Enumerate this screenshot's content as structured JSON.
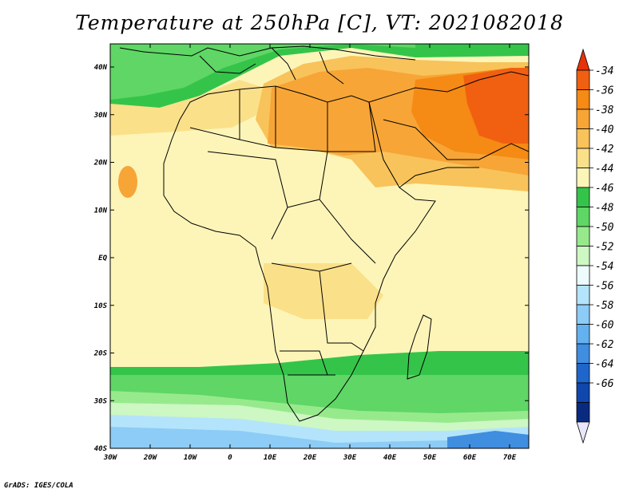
{
  "title": "Temperature at 250hPa [C], VT: 2021082018",
  "credit": "GrADS: IGES/COLA",
  "map": {
    "lat_labels": [
      "40N",
      "30N",
      "20N",
      "10N",
      "EQ",
      "10S",
      "20S",
      "30S",
      "40S"
    ],
    "lon_labels": [
      "30W",
      "20W",
      "10W",
      "0",
      "10E",
      "20E",
      "30E",
      "40E",
      "50E",
      "60E",
      "70E"
    ]
  },
  "colorbar": {
    "labels": [
      "-34",
      "-36",
      "-38",
      "-40",
      "-42",
      "-44",
      "-46",
      "-48",
      "-50",
      "-52",
      "-54",
      "-56",
      "-58",
      "-60",
      "-62",
      "-64",
      "-66"
    ],
    "colors": [
      "#e8330a",
      "#f06010",
      "#f58a14",
      "#f7a536",
      "#f8c35a",
      "#fbe08a",
      "#fdf5b8",
      "#35c44a",
      "#5fd665",
      "#97ea8c",
      "#cdf7c3",
      "#eefbfd",
      "#b4e4fb",
      "#8cccf6",
      "#63b1ee",
      "#3f8ee0",
      "#1f66cc",
      "#0f47ad",
      "#0a2a80",
      "#e8e6fb"
    ]
  }
}
